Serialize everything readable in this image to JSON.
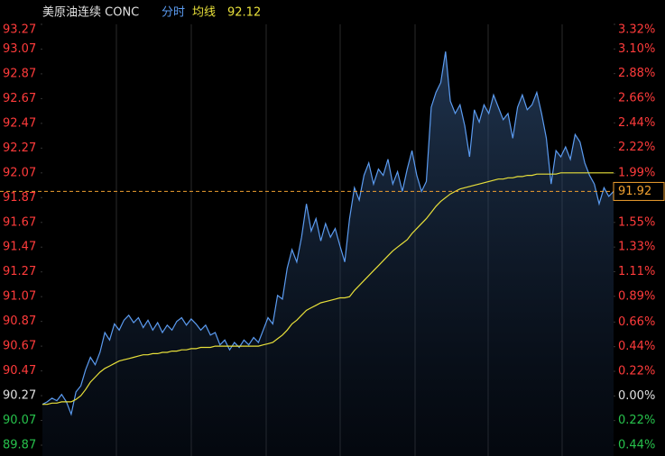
{
  "chart_data": {
    "type": "line",
    "title": "美原油连续 CONC",
    "avg_value": 92.12,
    "last_price": 91.92,
    "ylim": [
      89.87,
      93.27
    ],
    "yticks": [
      93.27,
      93.07,
      92.87,
      92.67,
      92.47,
      92.27,
      92.07,
      91.87,
      91.67,
      91.47,
      91.27,
      91.07,
      90.87,
      90.67,
      90.47,
      90.27,
      90.07,
      89.87
    ],
    "y2lim": [
      -0.44,
      3.32
    ],
    "y2ticks": [
      {
        "value": 3.32,
        "label": "3.32%"
      },
      {
        "value": 3.1,
        "label": "3.10%"
      },
      {
        "value": 2.88,
        "label": "2.88%"
      },
      {
        "value": 2.66,
        "label": "2.66%"
      },
      {
        "value": 2.44,
        "label": "2.44%"
      },
      {
        "value": 2.22,
        "label": "2.22%"
      },
      {
        "value": 1.99,
        "label": "1.99%"
      },
      {
        "value": 1.55,
        "label": "1.55%"
      },
      {
        "value": 1.33,
        "label": "1.33%"
      },
      {
        "value": 1.11,
        "label": "1.11%"
      },
      {
        "value": 0.89,
        "label": "0.89%"
      },
      {
        "value": 0.66,
        "label": "0.66%"
      },
      {
        "value": 0.44,
        "label": "0.44%"
      },
      {
        "value": 0.22,
        "label": "0.22%"
      },
      {
        "value": 0,
        "label": "0.00%"
      },
      {
        "value": -0.22,
        "label": "0.22%"
      },
      {
        "value": -0.44,
        "label": "0.44%"
      }
    ],
    "series": [
      {
        "name": "分时",
        "color": "#5b9bf0",
        "values": [
          90.2,
          90.22,
          90.25,
          90.23,
          90.28,
          90.22,
          90.12,
          90.3,
          90.35,
          90.48,
          90.58,
          90.52,
          90.62,
          90.78,
          90.72,
          90.85,
          90.8,
          90.88,
          90.92,
          90.86,
          90.9,
          90.82,
          90.88,
          90.8,
          90.86,
          90.78,
          90.84,
          90.8,
          90.87,
          90.9,
          90.84,
          90.89,
          90.85,
          90.8,
          90.84,
          90.76,
          90.78,
          90.68,
          90.72,
          90.64,
          90.7,
          90.66,
          90.72,
          90.68,
          90.74,
          90.7,
          90.8,
          90.9,
          90.85,
          91.08,
          91.05,
          91.3,
          91.45,
          91.35,
          91.55,
          91.82,
          91.6,
          91.7,
          91.52,
          91.66,
          91.55,
          91.62,
          91.48,
          91.35,
          91.7,
          91.95,
          91.85,
          92.05,
          92.15,
          91.98,
          92.1,
          92.05,
          92.18,
          91.98,
          92.08,
          91.92,
          92.1,
          92.25,
          92.05,
          91.92,
          92.0,
          92.6,
          92.72,
          92.8,
          93.05,
          92.65,
          92.55,
          92.62,
          92.45,
          92.2,
          92.58,
          92.48,
          92.62,
          92.55,
          92.7,
          92.6,
          92.5,
          92.55,
          92.35,
          92.6,
          92.7,
          92.58,
          92.62,
          92.72,
          92.55,
          92.35,
          91.98,
          92.25,
          92.2,
          92.28,
          92.18,
          92.38,
          92.32,
          92.15,
          92.05,
          91.98,
          91.82,
          91.95,
          91.88,
          91.92
        ]
      },
      {
        "name": "均线",
        "color": "#e8e03a",
        "values": [
          90.2,
          90.2,
          90.21,
          90.21,
          90.22,
          90.22,
          90.22,
          90.24,
          90.27,
          90.32,
          90.38,
          90.42,
          90.46,
          90.49,
          90.51,
          90.53,
          90.55,
          90.56,
          90.57,
          90.58,
          90.59,
          90.6,
          90.6,
          90.61,
          90.61,
          90.62,
          90.62,
          90.63,
          90.63,
          90.64,
          90.64,
          90.65,
          90.65,
          90.66,
          90.66,
          90.66,
          90.67,
          90.67,
          90.67,
          90.67,
          90.67,
          90.67,
          90.67,
          90.67,
          90.67,
          90.67,
          90.68,
          90.69,
          90.7,
          90.73,
          90.76,
          90.8,
          90.85,
          90.88,
          90.92,
          90.96,
          90.98,
          91.0,
          91.02,
          91.03,
          91.04,
          91.05,
          91.06,
          91.06,
          91.07,
          91.12,
          91.16,
          91.2,
          91.24,
          91.28,
          91.32,
          91.36,
          91.4,
          91.44,
          91.47,
          91.5,
          91.53,
          91.58,
          91.62,
          91.66,
          91.7,
          91.75,
          91.8,
          91.84,
          91.87,
          91.9,
          91.92,
          91.94,
          91.95,
          91.96,
          91.97,
          91.98,
          91.99,
          92.0,
          92.01,
          92.02,
          92.02,
          92.03,
          92.03,
          92.04,
          92.04,
          92.05,
          92.05,
          92.06,
          92.06,
          92.06,
          92.06,
          92.06,
          92.07,
          92.07,
          92.07,
          92.07,
          92.07,
          92.07,
          92.07,
          92.07,
          92.07,
          92.07,
          92.07,
          92.07
        ]
      }
    ]
  }
}
